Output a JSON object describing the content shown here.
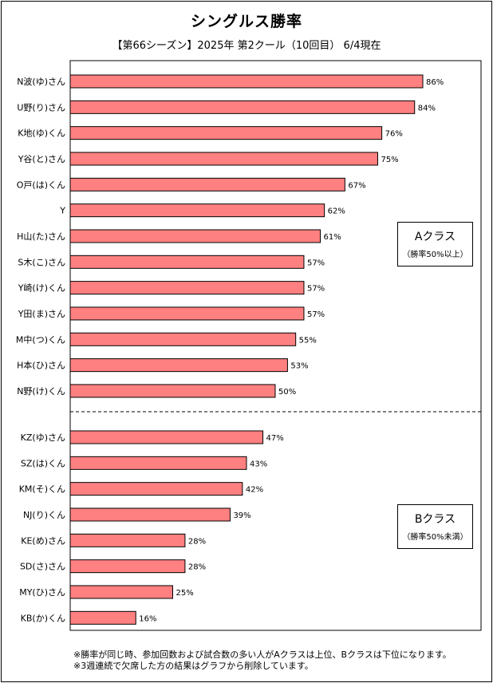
{
  "title": "シングルス勝率",
  "subtitle": "【第66シーズン】2025年 第2クール（10回目） 6/4現在",
  "chart_data": {
    "type": "bar",
    "orientation": "horizontal",
    "title": "シングルス勝率",
    "subtitle": "【第66シーズン】2025年 第2クール（10回目） 6/4現在",
    "xlim": [
      0,
      90
    ],
    "value_suffix": "%",
    "grid": false,
    "groups": [
      {
        "name": "Aクラス",
        "note": "（勝率50%以上）",
        "categories": [
          "N波(ゆ)さん",
          "U野(り)さん",
          "K地(ゆ)くん",
          "Y谷(と)さん",
          "O戸(は)くん",
          "Y",
          "H山(た)さん",
          "S木(こ)さん",
          "Y崎(け)くん",
          "Y田(ま)さん",
          "M中(つ)くん",
          "H本(ひ)さん",
          "N野(け)くん"
        ],
        "values": [
          86,
          84,
          76,
          75,
          67,
          62,
          61,
          57,
          57,
          57,
          55,
          53,
          50
        ]
      },
      {
        "name": "Bクラス",
        "note": "（勝率50%未満）",
        "categories": [
          "KZ(ゆ)さん",
          "SZ(は)くん",
          "KM(そ)くん",
          "NJ(り)くん",
          "KE(め)さん",
          "SD(さ)さん",
          "MY(ひ)さん",
          "KB(か)くん"
        ],
        "values": [
          47,
          43,
          42,
          39,
          28,
          28,
          25,
          16
        ]
      }
    ]
  },
  "footnotes": [
    "※勝率が同じ時、参加回数および試合数の多い人がAクラスは上位、Bクラスは下位になります。",
    "※3週連続で欠席した方の結果はグラフから削除しています。"
  ],
  "colors": {
    "bar": "#ff8080",
    "border": "#000000"
  }
}
